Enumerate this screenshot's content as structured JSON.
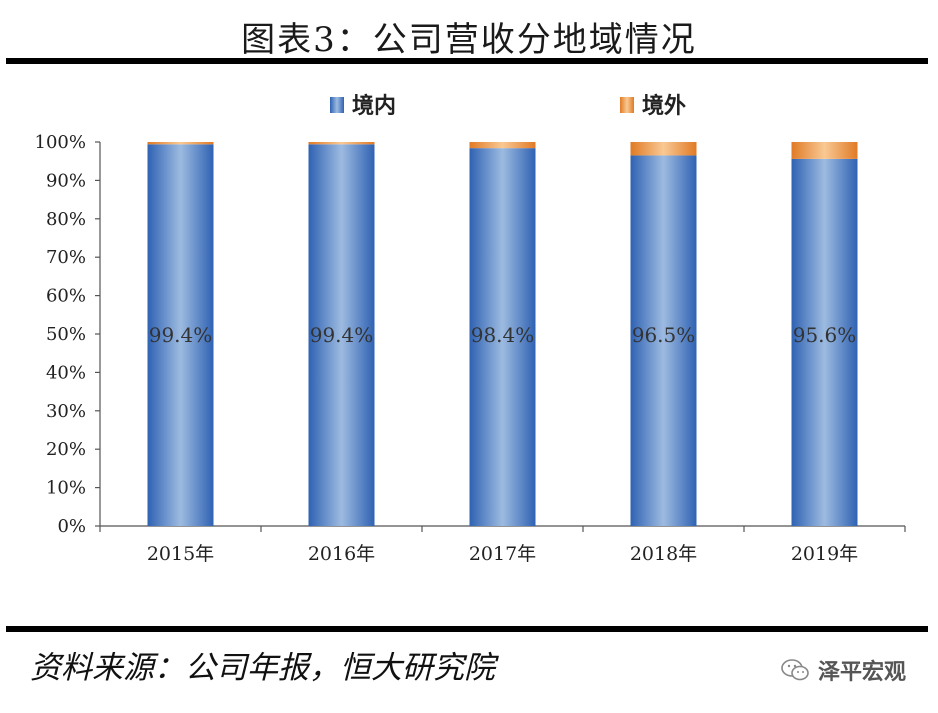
{
  "header": {
    "title": "图表3：公司营收分地域情况"
  },
  "footer": {
    "source": "资料来源：公司年报，恒大研究院",
    "brand": "泽平宏观",
    "brand_icon": "wechat-icon"
  },
  "colors": {
    "domestic": "#3d72c0",
    "domestic_highlight": "#8fb1da",
    "overseas": "#e98737",
    "overseas_highlight": "#f8c18a",
    "axis": "#555555",
    "text": "#222222"
  },
  "chart_data": {
    "type": "bar",
    "stacked": true,
    "categories": [
      "2015年",
      "2016年",
      "2017年",
      "2018年",
      "2019年"
    ],
    "series": [
      {
        "name": "境内",
        "values": [
          99.4,
          99.4,
          98.4,
          96.5,
          95.6
        ],
        "labels": [
          "99.4%",
          "99.4%",
          "98.4%",
          "96.5%",
          "95.6%"
        ]
      },
      {
        "name": "境外",
        "values": [
          0.6,
          0.6,
          1.6,
          3.5,
          4.4
        ]
      }
    ],
    "ylim": [
      0,
      100
    ],
    "yticks": [
      "0%",
      "10%",
      "20%",
      "30%",
      "40%",
      "50%",
      "60%",
      "70%",
      "80%",
      "90%",
      "100%"
    ],
    "legend": "top-center",
    "grid": false
  }
}
